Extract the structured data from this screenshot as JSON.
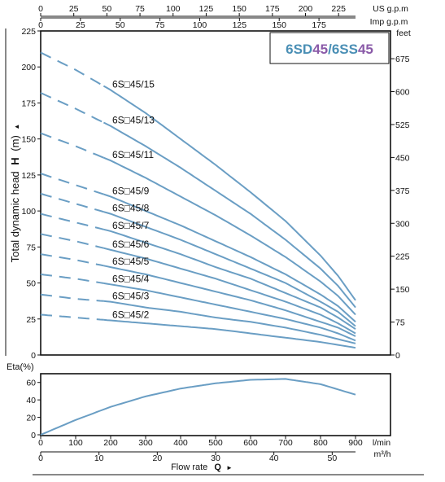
{
  "chart_data": [
    {
      "type": "line",
      "title_parts": [
        {
          "text": "6SD",
          "color": "#4a8fb5"
        },
        {
          "text": "45",
          "color": "#8a5aa8"
        },
        {
          "text": "/6SS",
          "color": "#4a8fb5"
        },
        {
          "text": "45",
          "color": "#8a5aa8"
        }
      ],
      "ylabel": "Total dynamic head",
      "ylabel_symbol": "H",
      "ylabel_unit": "(m)",
      "ylim": [
        0,
        225
      ],
      "y_ticks": [
        0,
        25,
        50,
        75,
        100,
        125,
        150,
        175,
        200,
        225
      ],
      "y_right_label": "feet",
      "y_right_ticks": [
        0,
        75,
        150,
        225,
        300,
        375,
        450,
        525,
        600,
        675
      ],
      "xlim": [
        0,
        900
      ],
      "x_ticks": [
        0,
        100,
        200,
        300,
        400,
        500,
        600,
        700,
        800,
        900
      ],
      "x_unit": "l/min",
      "x2_unit": "m³/h",
      "x2_ticks": [
        0,
        10,
        20,
        30,
        40,
        50
      ],
      "top1_unit": "US g.p.m",
      "top1_ticks": [
        0,
        25,
        50,
        75,
        100,
        125,
        150,
        175,
        200,
        225
      ],
      "top2_unit": "Imp g.p.m",
      "top2_ticks": [
        0,
        25,
        50,
        75,
        100,
        125,
        150,
        175
      ],
      "xlabel": "Flow  rate",
      "xlabel_symbol": "Q",
      "series_color": "#6a9ec4",
      "dash_end_flow": 180,
      "x": [
        0,
        100,
        200,
        300,
        400,
        500,
        600,
        700,
        800,
        850,
        900
      ],
      "series": [
        {
          "name": "6S□45/15",
          "values": [
            210,
            198,
            184,
            168,
            150,
            132,
            113,
            93,
            69,
            55,
            38
          ]
        },
        {
          "name": "6S□45/13",
          "values": [
            182,
            171,
            159,
            145,
            130,
            114,
            98,
            80,
            60,
            48,
            33
          ]
        },
        {
          "name": "6S□45/11",
          "values": [
            154,
            145,
            135,
            123,
            110,
            97,
            83,
            68,
            51,
            41,
            28
          ]
        },
        {
          "name": "6S□45/9",
          "values": [
            126,
            118,
            110,
            100,
            90,
            79,
            68,
            56,
            42,
            34,
            23
          ]
        },
        {
          "name": "6S□45/8",
          "values": [
            112,
            105,
            98,
            89,
            80,
            70,
            60,
            50,
            37,
            30,
            20
          ]
        },
        {
          "name": "6S□45/7",
          "values": [
            98,
            92,
            86,
            78,
            70,
            61,
            53,
            43,
            33,
            26,
            18
          ]
        },
        {
          "name": "6S□45/6",
          "values": [
            84,
            79,
            73,
            67,
            60,
            53,
            45,
            37,
            28,
            22,
            15
          ]
        },
        {
          "name": "6S□45/5",
          "values": [
            70,
            66,
            61,
            56,
            50,
            44,
            38,
            31,
            23,
            19,
            13
          ]
        },
        {
          "name": "6S□45/4",
          "values": [
            56,
            53,
            49,
            45,
            40,
            35,
            30,
            25,
            19,
            15,
            10
          ]
        },
        {
          "name": "6S□45/3",
          "values": [
            42,
            39,
            37,
            33,
            30,
            26,
            23,
            19,
            14,
            11,
            8
          ]
        },
        {
          "name": "6S□45/2",
          "values": [
            28,
            26,
            24,
            22,
            20,
            18,
            15,
            12,
            9,
            7,
            5
          ]
        }
      ]
    },
    {
      "type": "line",
      "ylabel": "Eta(%)",
      "ylim": [
        0,
        70
      ],
      "y_ticks": [
        0,
        20,
        40,
        60
      ],
      "xlim": [
        0,
        900
      ],
      "x": [
        0,
        100,
        200,
        300,
        400,
        500,
        600,
        700,
        800,
        900
      ],
      "values": [
        0,
        17,
        32,
        44,
        53,
        59,
        63,
        64,
        58,
        46
      ],
      "series_color": "#6a9ec4"
    }
  ]
}
